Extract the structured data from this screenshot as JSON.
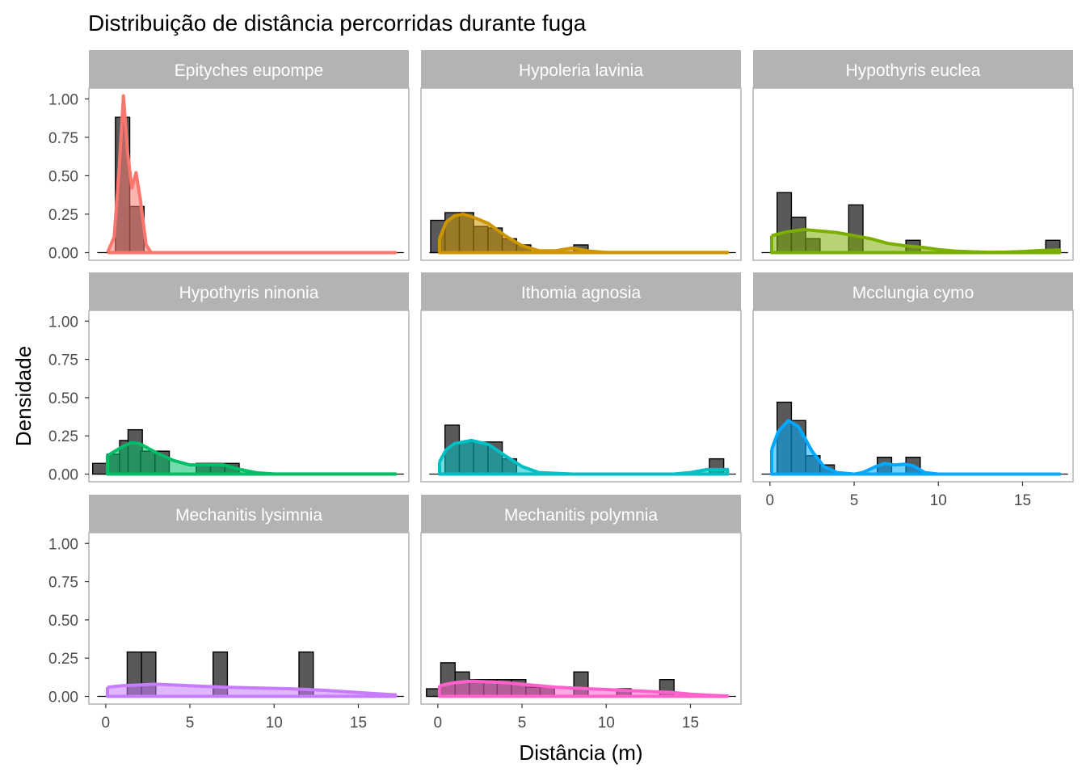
{
  "chart_data": {
    "type": "faceted histogram with density curves",
    "title": "Distribuição de distância percorridas durante fuga",
    "xlabel": "Distância (m)",
    "ylabel": "Densidade",
    "xlim": [
      -1,
      18
    ],
    "ylim": [
      -0.05,
      1.07
    ],
    "x_ticks": [
      0,
      5,
      10,
      15
    ],
    "y_ticks": [
      0,
      0.25,
      0.5,
      0.75,
      1
    ],
    "y_tick_labels": [
      "0.00",
      "0.25",
      "0.50",
      "0.75",
      "1.00"
    ],
    "bin_width": 0.85,
    "panels": [
      {
        "species": "Epityches eupompe",
        "color": "#F8766D",
        "bins": [
          [
            1,
            0.88
          ],
          [
            1.85,
            0.3
          ]
        ],
        "density": [
          [
            0.1,
            0
          ],
          [
            0.5,
            0.1
          ],
          [
            0.8,
            0.55
          ],
          [
            1.05,
            1.02
          ],
          [
            1.3,
            0.65
          ],
          [
            1.55,
            0.42
          ],
          [
            1.8,
            0.52
          ],
          [
            2.05,
            0.35
          ],
          [
            2.4,
            0.05
          ],
          [
            2.7,
            0
          ],
          [
            17.2,
            0
          ]
        ]
      },
      {
        "species": "Hypoleria lavinia",
        "color": "#CD9600",
        "bins": [
          [
            0,
            0.21
          ],
          [
            0.85,
            0.26
          ],
          [
            1.7,
            0.26
          ],
          [
            2.55,
            0.17
          ],
          [
            3.4,
            0.16
          ],
          [
            4.25,
            0.09
          ],
          [
            5.1,
            0.05
          ],
          [
            8.5,
            0.05
          ]
        ],
        "density": [
          [
            0.1,
            0.09
          ],
          [
            0.5,
            0.2
          ],
          [
            1,
            0.24
          ],
          [
            1.5,
            0.25
          ],
          [
            2,
            0.235
          ],
          [
            3,
            0.19
          ],
          [
            4,
            0.11
          ],
          [
            5,
            0.045
          ],
          [
            6,
            0.012
          ],
          [
            7,
            0.012
          ],
          [
            8,
            0.03
          ],
          [
            9,
            0.01
          ],
          [
            10,
            0.001
          ],
          [
            17.2,
            0.001
          ]
        ]
      },
      {
        "species": "Hypothyris euclea",
        "color": "#7CAE00",
        "bins": [
          [
            0.85,
            0.39
          ],
          [
            1.7,
            0.23
          ],
          [
            2.55,
            0.09
          ],
          [
            5.1,
            0.31
          ],
          [
            8.5,
            0.08
          ],
          [
            16.8,
            0.08
          ]
        ],
        "density": [
          [
            0.1,
            0.11
          ],
          [
            1,
            0.135
          ],
          [
            2,
            0.15
          ],
          [
            3,
            0.14
          ],
          [
            4,
            0.13
          ],
          [
            5,
            0.11
          ],
          [
            6,
            0.09
          ],
          [
            7,
            0.06
          ],
          [
            8,
            0.045
          ],
          [
            9,
            0.035
          ],
          [
            10,
            0.02
          ],
          [
            11,
            0.01
          ],
          [
            12,
            0.005
          ],
          [
            13,
            0.002
          ],
          [
            14,
            0.003
          ],
          [
            15,
            0.007
          ],
          [
            16,
            0.013
          ],
          [
            17.2,
            0.018
          ]
        ]
      },
      {
        "species": "Hypothyris ninonia",
        "color": "#00BE67",
        "bins": [
          [
            -0.35,
            0.07
          ],
          [
            0.5,
            0.13
          ],
          [
            1.25,
            0.22
          ],
          [
            1.75,
            0.29
          ],
          [
            2.5,
            0.15
          ],
          [
            3.35,
            0.15
          ],
          [
            5.8,
            0.07
          ],
          [
            6.65,
            0.07
          ],
          [
            7.5,
            0.07
          ]
        ],
        "density": [
          [
            0.1,
            0.12
          ],
          [
            1,
            0.18
          ],
          [
            1.5,
            0.205
          ],
          [
            2,
            0.2
          ],
          [
            3,
            0.14
          ],
          [
            4,
            0.09
          ],
          [
            5,
            0.06
          ],
          [
            6,
            0.06
          ],
          [
            7,
            0.06
          ],
          [
            8,
            0.03
          ],
          [
            9,
            0.008
          ],
          [
            10,
            0.001
          ],
          [
            17.2,
            0.001
          ]
        ]
      },
      {
        "species": "Ithomia agnosia",
        "color": "#00BFC4",
        "bins": [
          [
            0.85,
            0.32
          ],
          [
            1.7,
            0.21
          ],
          [
            2.55,
            0.21
          ],
          [
            3.4,
            0.21
          ],
          [
            4.25,
            0.1
          ],
          [
            16.55,
            0.1
          ]
        ],
        "density": [
          [
            0.1,
            0.08
          ],
          [
            0.5,
            0.16
          ],
          [
            1,
            0.2
          ],
          [
            2,
            0.22
          ],
          [
            3,
            0.195
          ],
          [
            4,
            0.12
          ],
          [
            5,
            0.05
          ],
          [
            6,
            0.01
          ],
          [
            8,
            0
          ],
          [
            14,
            0
          ],
          [
            15,
            0.01
          ],
          [
            16,
            0.03
          ],
          [
            17.2,
            0.03
          ]
        ]
      },
      {
        "species": "Mcclungia cymo",
        "color": "#00A9FF",
        "bins": [
          [
            0.85,
            0.47
          ],
          [
            1.7,
            0.35
          ],
          [
            2.55,
            0.12
          ],
          [
            3.4,
            0.06
          ],
          [
            6.8,
            0.11
          ],
          [
            8.5,
            0.11
          ]
        ],
        "density": [
          [
            0.1,
            0.16
          ],
          [
            0.5,
            0.28
          ],
          [
            1.1,
            0.35
          ],
          [
            1.7,
            0.31
          ],
          [
            2.5,
            0.15
          ],
          [
            3.2,
            0.05
          ],
          [
            4,
            0.01
          ],
          [
            5,
            0
          ],
          [
            5.5,
            0.01
          ],
          [
            6.3,
            0.05
          ],
          [
            6.8,
            0.07
          ],
          [
            7.4,
            0.06
          ],
          [
            8,
            0.065
          ],
          [
            8.5,
            0.055
          ],
          [
            9.2,
            0.01
          ],
          [
            10,
            0
          ],
          [
            17.2,
            0
          ]
        ]
      },
      {
        "species": "Mechanitis lysimnia",
        "color": "#C77CFF",
        "bins": [
          [
            1.7,
            0.29
          ],
          [
            2.55,
            0.29
          ],
          [
            6.8,
            0.29
          ],
          [
            11.9,
            0.29
          ]
        ],
        "density": [
          [
            0.1,
            0.06
          ],
          [
            1,
            0.07
          ],
          [
            2,
            0.075
          ],
          [
            3,
            0.08
          ],
          [
            4,
            0.075
          ],
          [
            5,
            0.07
          ],
          [
            7,
            0.06
          ],
          [
            9,
            0.055
          ],
          [
            11,
            0.05
          ],
          [
            13,
            0.04
          ],
          [
            15,
            0.025
          ],
          [
            17.2,
            0.01
          ]
        ]
      },
      {
        "species": "Mechanitis polymnia",
        "color": "#FF61CC",
        "bins": [
          [
            -0.25,
            0.05
          ],
          [
            0.6,
            0.22
          ],
          [
            1.45,
            0.16
          ],
          [
            2.3,
            0.11
          ],
          [
            3.15,
            0.11
          ],
          [
            3.95,
            0.11
          ],
          [
            4.8,
            0.11
          ],
          [
            5.65,
            0.06
          ],
          [
            6.5,
            0.06
          ],
          [
            8.5,
            0.16
          ],
          [
            11.05,
            0.05
          ],
          [
            13.6,
            0.11
          ]
        ],
        "density": [
          [
            0.1,
            0.07
          ],
          [
            1,
            0.09
          ],
          [
            2,
            0.1
          ],
          [
            3,
            0.095
          ],
          [
            4,
            0.09
          ],
          [
            5,
            0.08
          ],
          [
            6,
            0.07
          ],
          [
            7,
            0.06
          ],
          [
            8,
            0.055
          ],
          [
            9,
            0.05
          ],
          [
            10,
            0.045
          ],
          [
            11,
            0.04
          ],
          [
            12,
            0.035
          ],
          [
            13,
            0.03
          ],
          [
            14,
            0.025
          ],
          [
            15,
            0.015
          ],
          [
            16,
            0.008
          ],
          [
            17.2,
            0.003
          ]
        ]
      }
    ]
  }
}
